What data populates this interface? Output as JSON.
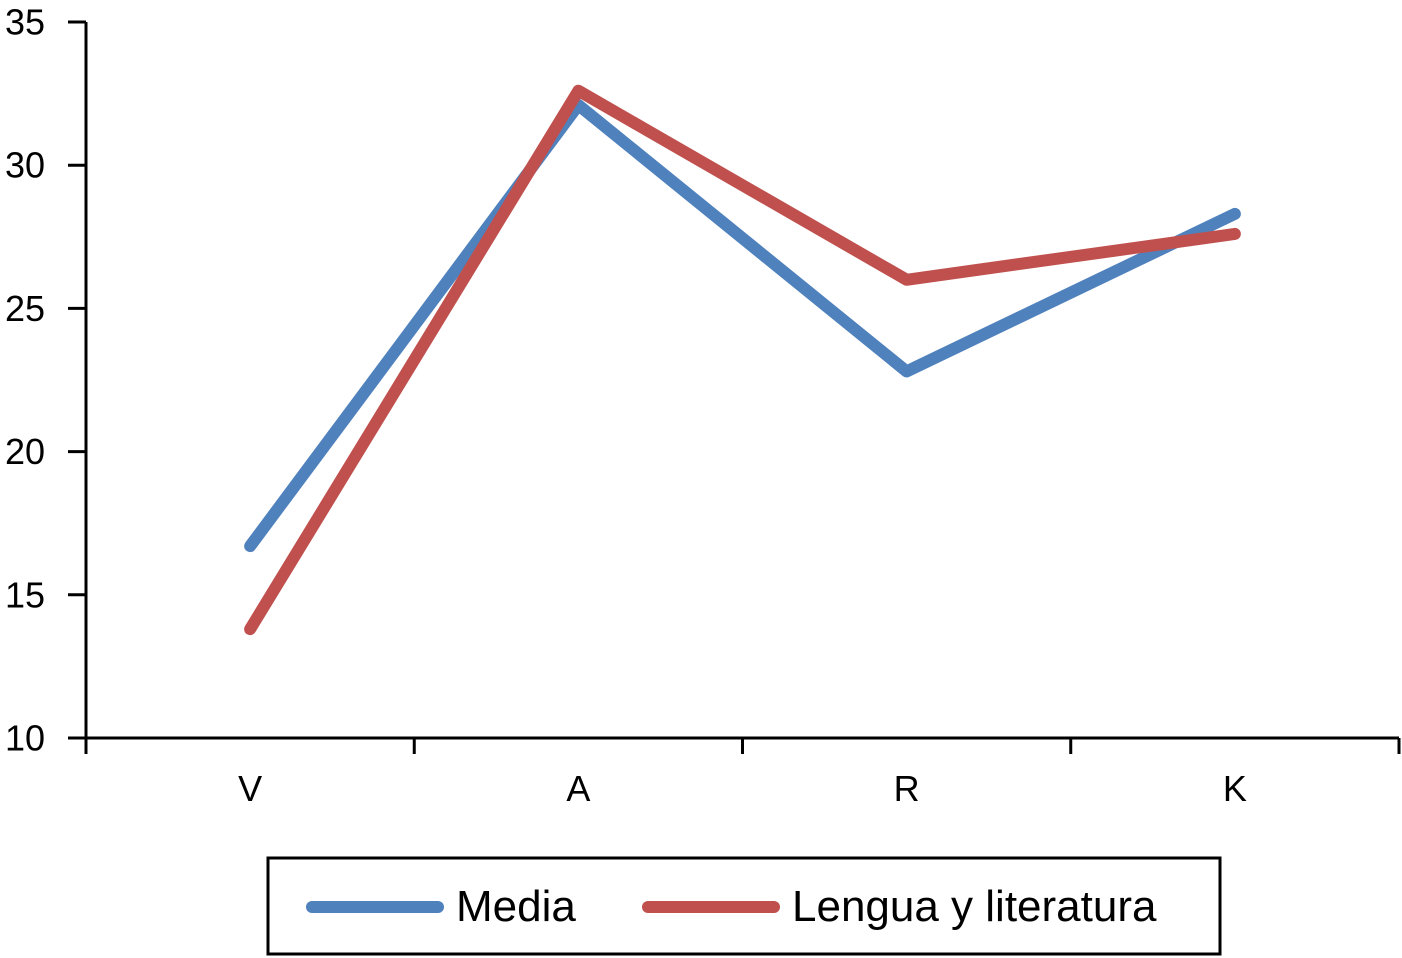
{
  "chart_data": {
    "type": "line",
    "categories": [
      "V",
      "A",
      "R",
      "K"
    ],
    "ylim": [
      10,
      35
    ],
    "yticks": [
      10,
      15,
      20,
      25,
      30,
      35
    ],
    "grid": false,
    "legend_position": "bottom",
    "series": [
      {
        "name": "Media",
        "color": "#4f81bd",
        "values": [
          16.7,
          32.1,
          22.8,
          28.3
        ]
      },
      {
        "name": "Lengua y literatura",
        "color": "#c0504d",
        "values": [
          13.8,
          32.6,
          26.0,
          27.6
        ]
      }
    ]
  }
}
